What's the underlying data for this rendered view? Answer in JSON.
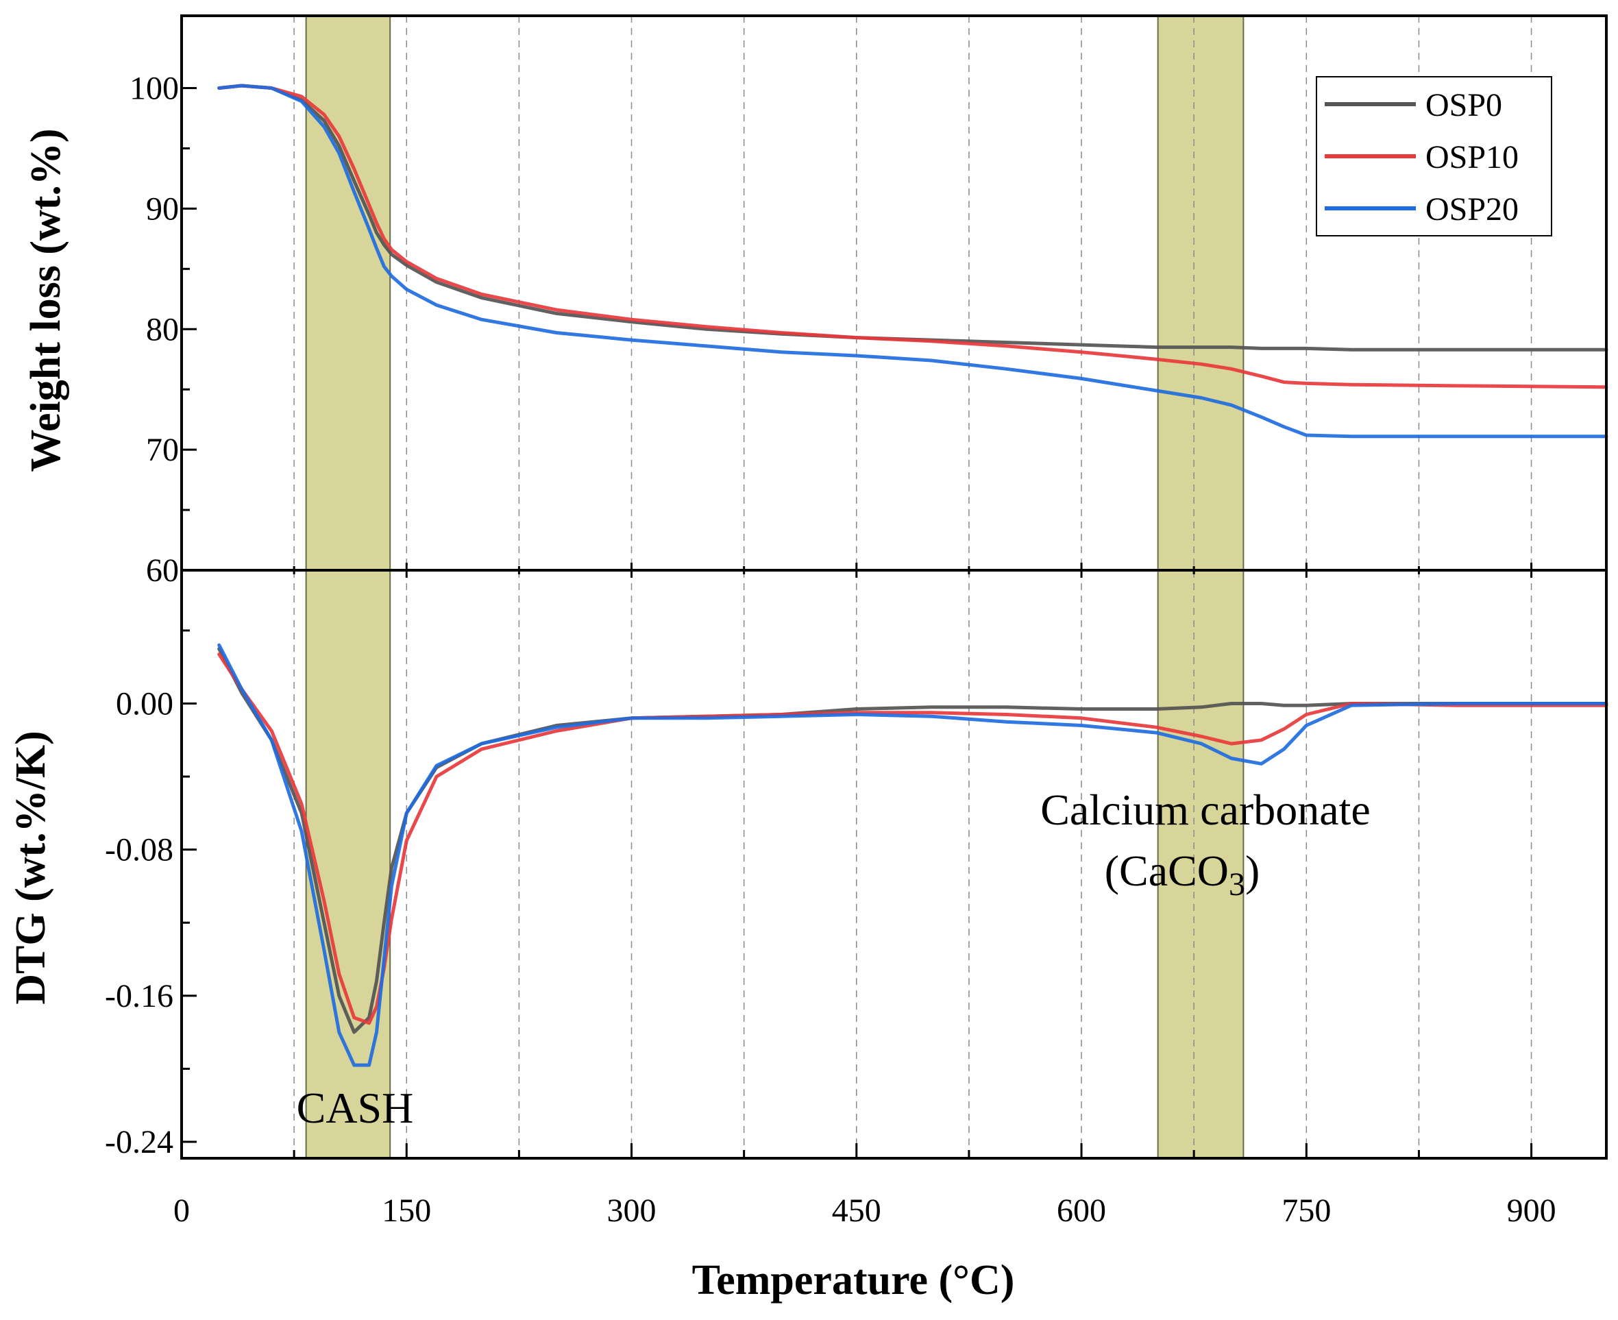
{
  "chart_data": {
    "type": "line",
    "x": [
      25,
      40,
      60,
      80,
      95,
      105,
      115,
      125,
      130,
      135,
      140,
      150,
      170,
      200,
      250,
      300,
      350,
      400,
      450,
      500,
      550,
      600,
      650,
      680,
      700,
      720,
      735,
      750,
      780,
      850,
      950
    ],
    "xlabel": "Temperature (°C)",
    "x_tick_labels": [
      "0",
      "150",
      "300",
      "450",
      "600",
      "750",
      "900"
    ],
    "xlim": [
      0,
      950
    ],
    "highlight_bands": [
      [
        83,
        139
      ],
      [
        651,
        708
      ]
    ],
    "panels": [
      {
        "name": "weight-loss",
        "ylabel": "Weight loss (wt.%)",
        "ylim": [
          60,
          106
        ],
        "y_tick_labels": [
          "60",
          "70",
          "80",
          "90",
          "100"
        ],
        "series": [
          {
            "name": "OSP0",
            "color": "#545454",
            "values": [
              100,
              100.2,
              100,
              99,
              97.3,
              95.2,
              92.3,
              89.5,
              88,
              87,
              86.2,
              85.3,
              83.9,
              82.6,
              81.3,
              80.6,
              80,
              79.6,
              79.3,
              79.1,
              78.9,
              78.7,
              78.5,
              78.5,
              78.5,
              78.4,
              78.4,
              78.4,
              78.3,
              78.3,
              78.3
            ]
          },
          {
            "name": "OSP10",
            "color": "#e8393c",
            "values": [
              100,
              100.2,
              100,
              99.3,
              97.8,
              96,
              93.3,
              90.3,
              88.8,
              87.5,
              86.6,
              85.6,
              84.2,
              82.9,
              81.6,
              80.8,
              80.2,
              79.7,
              79.3,
              79,
              78.6,
              78.1,
              77.5,
              77.1,
              76.7,
              76.1,
              75.6,
              75.5,
              75.4,
              75.3,
              75.2
            ]
          },
          {
            "name": "OSP20",
            "color": "#1f6de0",
            "values": [
              100,
              100.2,
              100,
              98.9,
              96.8,
              94.6,
              91.4,
              88.3,
              86.7,
              85.2,
              84.4,
              83.3,
              82,
              80.8,
              79.7,
              79.1,
              78.6,
              78.1,
              77.8,
              77.4,
              76.7,
              75.9,
              74.9,
              74.3,
              73.7,
              72.7,
              71.9,
              71.2,
              71.1,
              71.1,
              71.1
            ]
          }
        ]
      },
      {
        "name": "dtg",
        "ylabel": "DTG (wt.%/K)",
        "ylim": [
          -0.249,
          0.073
        ],
        "y_tick_labels": [
          "-0.24",
          "-0.16",
          "-0.08",
          "0.00"
        ],
        "series": [
          {
            "name": "OSP0",
            "color": "#545454",
            "values": [
              0.03,
              0.006,
              -0.02,
              -0.06,
              -0.12,
              -0.16,
              -0.18,
              -0.172,
              -0.152,
              -0.12,
              -0.09,
              -0.06,
              -0.035,
              -0.022,
              -0.012,
              -0.008,
              -0.007,
              -0.006,
              -0.003,
              -0.002,
              -0.002,
              -0.003,
              -0.003,
              -0.002,
              0,
              0,
              -0.001,
              -0.001,
              0,
              0,
              0
            ]
          },
          {
            "name": "OSP10",
            "color": "#e8393c",
            "values": [
              0.027,
              0.008,
              -0.015,
              -0.055,
              -0.108,
              -0.148,
              -0.172,
              -0.175,
              -0.166,
              -0.145,
              -0.118,
              -0.075,
              -0.04,
              -0.025,
              -0.015,
              -0.008,
              -0.007,
              -0.006,
              -0.005,
              -0.005,
              -0.006,
              -0.008,
              -0.013,
              -0.018,
              -0.022,
              -0.02,
              -0.014,
              -0.006,
              0,
              -0.001,
              -0.001
            ]
          },
          {
            "name": "OSP20",
            "color": "#1f6de0",
            "values": [
              0.032,
              0.008,
              -0.02,
              -0.07,
              -0.135,
              -0.18,
              -0.198,
              -0.198,
              -0.18,
              -0.14,
              -0.1,
              -0.06,
              -0.034,
              -0.022,
              -0.013,
              -0.008,
              -0.008,
              -0.007,
              -0.006,
              -0.007,
              -0.01,
              -0.012,
              -0.016,
              -0.022,
              -0.03,
              -0.033,
              -0.025,
              -0.012,
              -0.001,
              0,
              0
            ]
          }
        ]
      }
    ],
    "legend": [
      "OSP0",
      "OSP10",
      "OSP20"
    ],
    "annotations": {
      "cash": "CASH",
      "carbonate_line1": "Calcium carbonate",
      "carbonate_line2_prefix": "(CaCO",
      "carbonate_line2_sub": "3",
      "carbonate_line2_suffix": ")"
    }
  }
}
